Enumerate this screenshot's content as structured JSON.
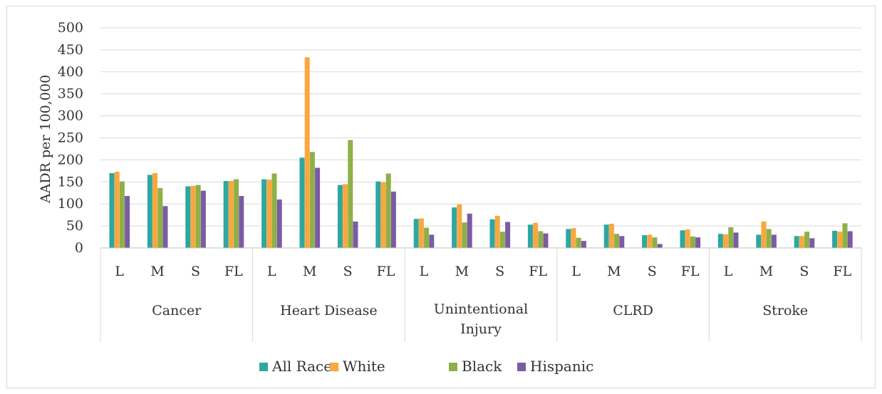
{
  "chart_data": {
    "type": "bar",
    "title": "",
    "xlabel": "",
    "ylabel": "AADR per 100,000",
    "ylim": [
      0,
      500
    ],
    "yticks": [
      "0",
      "50",
      "100",
      "150",
      "200",
      "250",
      "300",
      "350",
      "400",
      "450",
      "500"
    ],
    "grid": true,
    "legend_position": "bottom",
    "groups": [
      {
        "label": "Cancer",
        "subs": [
          "L",
          "M",
          "S",
          "FL"
        ]
      },
      {
        "label": "Heart Disease",
        "subs": [
          "L",
          "M",
          "S",
          "FL"
        ]
      },
      {
        "label": "Unintentional Injury",
        "lines": [
          "Unintentional",
          "Injury"
        ],
        "subs": [
          "L",
          "M",
          "S",
          "FL"
        ]
      },
      {
        "label": "CLRD",
        "subs": [
          "L",
          "M",
          "S",
          "FL"
        ]
      },
      {
        "label": "Stroke",
        "subs": [
          "L",
          "M",
          "S",
          "FL"
        ]
      }
    ],
    "series": [
      {
        "name": "All Races",
        "color": "#2ea7a0",
        "values": [
          170,
          166,
          140,
          152,
          156,
          205,
          143,
          151,
          66,
          92,
          65,
          53,
          43,
          53,
          29,
          40,
          32,
          30,
          27,
          39
        ]
      },
      {
        "name": "White",
        "color": "#f9a73e",
        "values": [
          173,
          170,
          141,
          152,
          155,
          433,
          145,
          149,
          67,
          99,
          73,
          57,
          45,
          55,
          30,
          42,
          31,
          60,
          27,
          37
        ]
      },
      {
        "name": "Black",
        "color": "#8fb047",
        "values": [
          151,
          136,
          143,
          156,
          169,
          218,
          245,
          169,
          46,
          58,
          37,
          38,
          23,
          32,
          24,
          26,
          47,
          43,
          37,
          56
        ]
      },
      {
        "name": "Hispanic",
        "color": "#7a5ca5",
        "values": [
          118,
          95,
          130,
          118,
          110,
          182,
          60,
          128,
          30,
          78,
          59,
          33,
          16,
          27,
          9,
          24,
          35,
          30,
          22,
          38
        ]
      }
    ]
  }
}
